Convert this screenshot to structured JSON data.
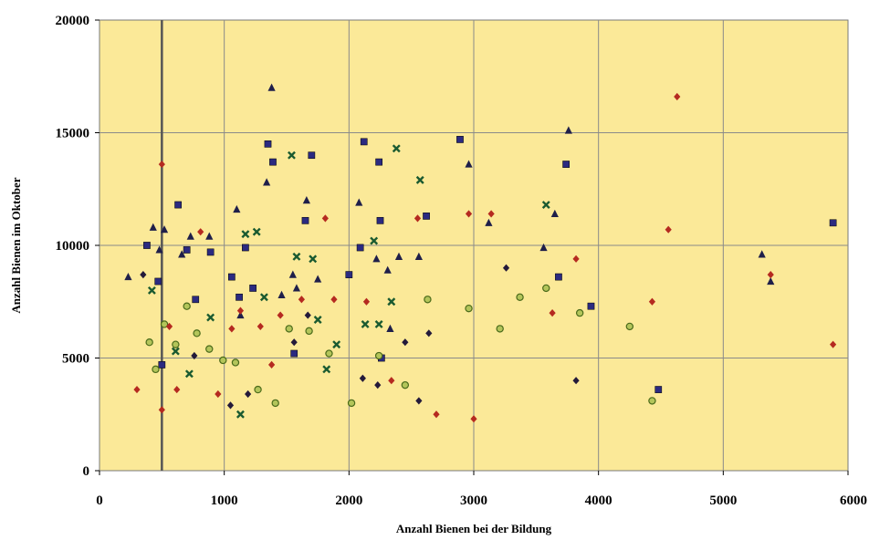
{
  "chart_data": {
    "type": "scatter",
    "title": "",
    "xlabel": "Anzahl Bienen bei der Bildung",
    "ylabel": "Anzahl Bienen im Oktober",
    "xlim": [
      0,
      6000
    ],
    "ylim": [
      0,
      20000
    ],
    "xticks": [
      "0",
      "1000",
      "2000",
      "3000",
      "4000",
      "5000",
      "6000"
    ],
    "yticks": [
      "0",
      "5000",
      "10000",
      "15000",
      "20000"
    ],
    "grid": true,
    "reference_line_x": 500,
    "background_color": "#fbe998",
    "series": [
      {
        "marker": "square",
        "color": "#2b2a80",
        "x": [
          380,
          470,
          500,
          630,
          700,
          770,
          890,
          1060,
          1120,
          1170,
          1230,
          1350,
          1390,
          1560,
          1650,
          1700,
          2000,
          2090,
          2120,
          2240,
          2250,
          2260,
          2620,
          2890,
          3740,
          3680,
          3940,
          4480,
          5880
        ],
        "y": [
          10000,
          8400,
          4700,
          11800,
          9800,
          7600,
          9700,
          8600,
          7700,
          9900,
          8100,
          14500,
          13700,
          5200,
          11100,
          14000,
          8700,
          9900,
          14600,
          13700,
          11100,
          5000,
          11300,
          14700,
          13600,
          8600,
          7300,
          3600,
          11000
        ]
      },
      {
        "marker": "triangle",
        "color": "#1f1f4a",
        "x": [
          230,
          430,
          480,
          520,
          660,
          730,
          880,
          1100,
          1130,
          1340,
          1380,
          1460,
          1550,
          1580,
          1660,
          1750,
          2080,
          2220,
          2310,
          2330,
          2400,
          2560,
          2960,
          3120,
          3560,
          3650,
          3760,
          5310,
          5380
        ],
        "y": [
          8600,
          10800,
          9800,
          10700,
          9600,
          10400,
          10400,
          11600,
          6900,
          12800,
          17000,
          7800,
          8700,
          8100,
          12000,
          8500,
          11900,
          9400,
          8900,
          6300,
          9500,
          9500,
          13600,
          11000,
          9900,
          11400,
          15100,
          9600,
          8400
        ]
      },
      {
        "marker": "cross",
        "color": "#1a5a30",
        "x": [
          420,
          610,
          720,
          890,
          1130,
          1170,
          1260,
          1320,
          1540,
          1580,
          1710,
          1750,
          1820,
          1900,
          2130,
          2200,
          2240,
          2340,
          2380,
          2570,
          3580
        ],
        "y": [
          8000,
          5300,
          4300,
          6800,
          2500,
          10500,
          10600,
          7700,
          14000,
          9500,
          9400,
          6700,
          4500,
          5600,
          6500,
          10200,
          6500,
          7500,
          14300,
          12900,
          11800
        ]
      },
      {
        "marker": "circle",
        "color": "#4a6a1a",
        "x": [
          400,
          450,
          520,
          610,
          700,
          780,
          880,
          990,
          1090,
          1270,
          1410,
          1520,
          1680,
          1840,
          2020,
          2240,
          2450,
          2630,
          2960,
          3210,
          3370,
          3580,
          3850,
          4250,
          4430
        ],
        "y": [
          5700,
          4500,
          6500,
          5600,
          7300,
          6100,
          5400,
          4900,
          4800,
          3600,
          3000,
          6300,
          6200,
          5200,
          3000,
          5100,
          3800,
          7600,
          7200,
          6300,
          7700,
          8100,
          7000,
          6400,
          3100
        ]
      },
      {
        "marker": "diamond",
        "color": "#b52a20",
        "x": [
          300,
          500,
          500,
          560,
          620,
          810,
          950,
          1060,
          1130,
          1290,
          1380,
          1450,
          1620,
          1810,
          1880,
          2140,
          2340,
          2550,
          2700,
          2960,
          3000,
          3140,
          3630,
          3820,
          4430,
          4560,
          4630,
          5380,
          5880
        ],
        "y": [
          3600,
          13600,
          2700,
          6400,
          3600,
          10600,
          3400,
          6300,
          7100,
          6400,
          4700,
          6900,
          7600,
          11200,
          7600,
          7500,
          4000,
          11200,
          2500,
          11400,
          2300,
          11400,
          7000,
          9400,
          7500,
          10700,
          16600,
          8700,
          5600
        ]
      },
      {
        "marker": "diamond",
        "color": "#241a3a",
        "x": [
          350,
          760,
          1050,
          1190,
          1560,
          1670,
          2110,
          2230,
          2450,
          2560,
          2640,
          3260,
          3820
        ],
        "y": [
          8700,
          5100,
          2900,
          3400,
          5700,
          6900,
          4100,
          3800,
          5700,
          3100,
          6100,
          9000,
          4000
        ]
      }
    ]
  }
}
